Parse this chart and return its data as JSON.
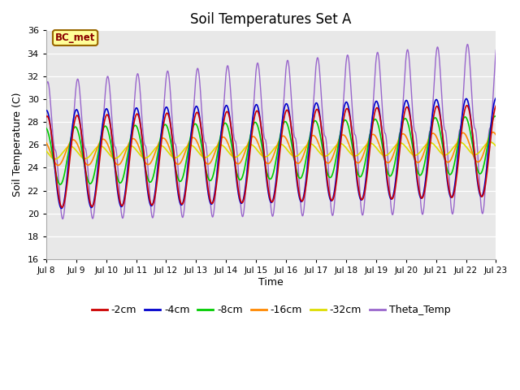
{
  "title": "Soil Temperatures Set A",
  "xlabel": "Time",
  "ylabel": "Soil Temperature (C)",
  "ylim": [
    16,
    36
  ],
  "xtick_labels": [
    "Jul 8",
    "Jul 9",
    "Jul 10",
    "Jul 11",
    "Jul 12",
    "Jul 13",
    "Jul 14",
    "Jul 15",
    "Jul 16",
    "Jul 17",
    "Jul 18",
    "Jul 19",
    "Jul 20",
    "Jul 21",
    "Jul 22",
    "Jul 23"
  ],
  "colors": {
    "-2cm": "#cc0000",
    "-4cm": "#0000cc",
    "-8cm": "#00cc00",
    "-16cm": "#ff8800",
    "-32cm": "#dddd00",
    "Theta_Temp": "#9966cc"
  },
  "annotation_text": "BC_met",
  "annotation_bg": "#ffff99",
  "annotation_border": "#996600",
  "plot_bg": "#e8e8e8",
  "fig_bg": "#ffffff",
  "title_fontsize": 12,
  "axis_fontsize": 9,
  "legend_fontsize": 9
}
